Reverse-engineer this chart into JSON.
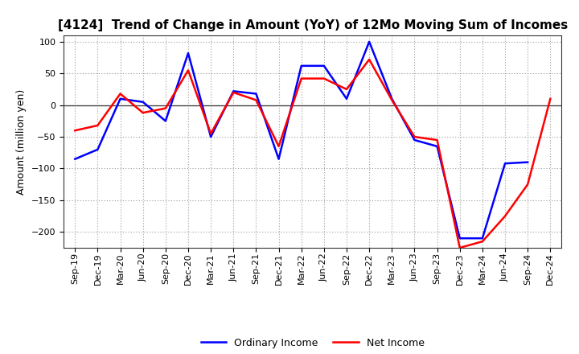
{
  "title": "[4124]  Trend of Change in Amount (YoY) of 12Mo Moving Sum of Incomes",
  "ylabel": "Amount (million yen)",
  "xlabels": [
    "Sep-19",
    "Dec-19",
    "Mar-20",
    "Jun-20",
    "Sep-20",
    "Dec-20",
    "Mar-21",
    "Jun-21",
    "Sep-21",
    "Dec-21",
    "Mar-22",
    "Jun-22",
    "Sep-22",
    "Dec-22",
    "Mar-23",
    "Jun-23",
    "Sep-23",
    "Dec-23",
    "Mar-24",
    "Jun-24",
    "Sep-24",
    "Dec-24"
  ],
  "ordinary_income": [
    -85,
    -70,
    10,
    5,
    -25,
    82,
    -50,
    22,
    18,
    -85,
    62,
    62,
    10,
    100,
    10,
    -55,
    -65,
    -210,
    -210,
    -92,
    -90,
    null
  ],
  "net_income": [
    -40,
    -32,
    18,
    -12,
    -5,
    55,
    -45,
    20,
    8,
    -65,
    42,
    42,
    25,
    72,
    8,
    -50,
    -55,
    -225,
    -215,
    -175,
    -125,
    10
  ],
  "ordinary_color": "#0000ff",
  "net_color": "#ff0000",
  "ylim": [
    -225,
    110
  ],
  "yticks": [
    100,
    50,
    0,
    -50,
    -100,
    -150,
    -200
  ],
  "background_color": "#ffffff",
  "grid_color": "#999999"
}
